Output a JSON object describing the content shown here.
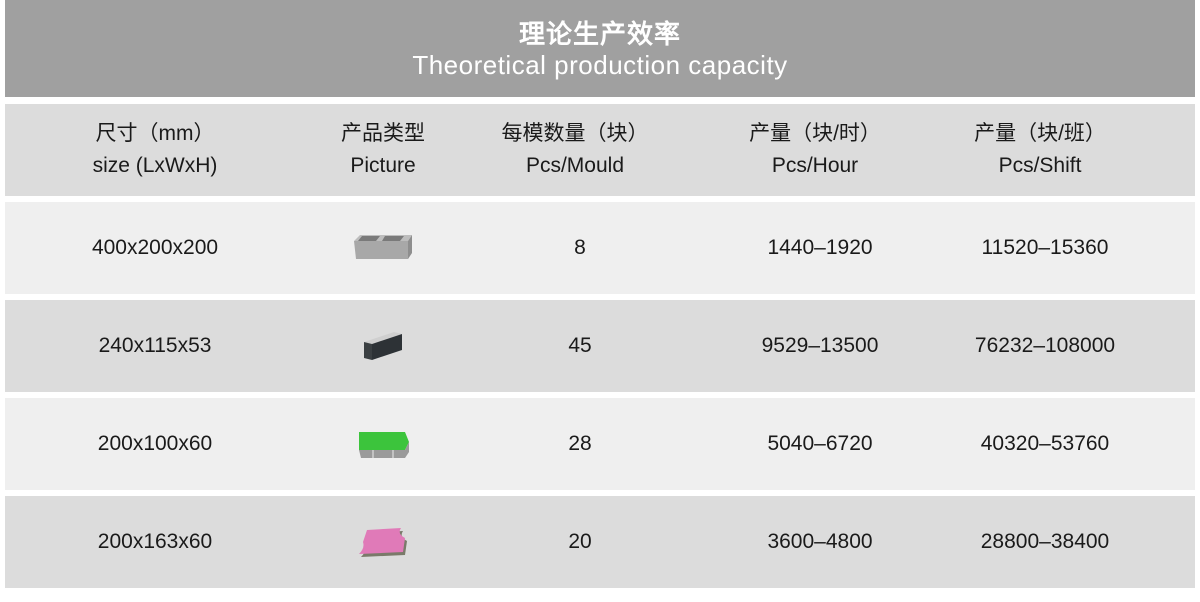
{
  "title": {
    "zh": "理论生产效率",
    "en": "Theoretical production capacity"
  },
  "headers": [
    {
      "zh": "尺寸（mm）",
      "en": "size (LxWxH)"
    },
    {
      "zh": "产品类型",
      "en": "Picture"
    },
    {
      "zh": "每模数量（块）",
      "en": "Pcs/Mould"
    },
    {
      "zh": "产量（块/时）",
      "en": "Pcs/Hour"
    },
    {
      "zh": "产量（块/班）",
      "en": "Pcs/Shift"
    }
  ],
  "rows": [
    {
      "size": "400x200x200",
      "picture": "hollow-block-icon",
      "pcs_mould": "8",
      "pcs_hour": "1440–1920",
      "pcs_shift": "11520–15360"
    },
    {
      "size": "240x115x53",
      "picture": "solid-brick-icon",
      "pcs_mould": "45",
      "pcs_hour": "9529–13500",
      "pcs_shift": "76232–108000"
    },
    {
      "size": "200x100x60",
      "picture": "green-paver-icon",
      "pcs_mould": "28",
      "pcs_hour": "5040–6720",
      "pcs_shift": "40320–53760"
    },
    {
      "size": "200x163x60",
      "picture": "pink-interlock-paver-icon",
      "pcs_mould": "20",
      "pcs_hour": "3600–4800",
      "pcs_shift": "28800–38400"
    }
  ],
  "colors": {
    "title_bg": "#a0a0a0",
    "row_dark": "#dcdcdc",
    "row_light": "#efefef",
    "paver_green": "#3cc43c",
    "paver_pink": "#e07ab8"
  }
}
